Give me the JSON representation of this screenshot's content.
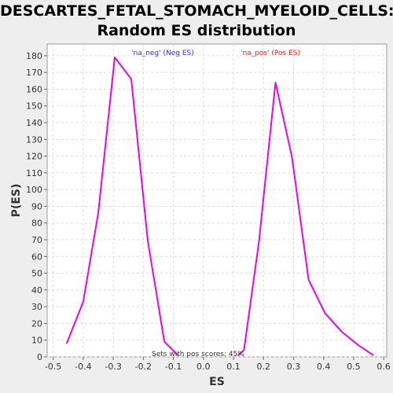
{
  "chart_data": {
    "type": "line",
    "title": "DESCARTES_FETAL_STOMACH_MYELOID_CELLS:",
    "subtitle": "Random ES distribution",
    "xlabel": "ES",
    "ylabel": "P(ES)",
    "xlim": [
      -0.52,
      0.61
    ],
    "ylim": [
      0,
      187
    ],
    "x_ticks": [
      "-0.5",
      "-0.4",
      "-0.3",
      "-0.2",
      "-0.1",
      "0.0",
      "0.1",
      "0.2",
      "0.3",
      "0.4",
      "0.5",
      "0.6"
    ],
    "y_ticks": [
      "0",
      "10",
      "20",
      "30",
      "40",
      "50",
      "60",
      "70",
      "80",
      "90",
      "100",
      "110",
      "120",
      "130",
      "140",
      "150",
      "160",
      "170",
      "180"
    ],
    "grid": true,
    "series": [
      {
        "name": "'na_neg' (Neg ES)",
        "color": "#ee00ee",
        "x": [
          -0.455,
          -0.4,
          -0.35,
          -0.295,
          -0.24,
          -0.185,
          -0.13,
          -0.085
        ],
        "y": [
          8,
          33,
          86,
          179,
          166,
          69,
          9,
          1
        ]
      },
      {
        "name": "'na_pos' (Pos ES)",
        "color": "#ee00ee",
        "x": [
          0.115,
          0.135,
          0.185,
          0.24,
          0.295,
          0.35,
          0.405,
          0.46,
          0.515,
          0.565
        ],
        "y": [
          1,
          4,
          69,
          164,
          119,
          46,
          26,
          15,
          7,
          1
        ]
      }
    ],
    "legend": [
      {
        "label": "'na_neg' (Neg ES)",
        "color": "#3333cc"
      },
      {
        "label": "'na_pos' (Pos ES)",
        "color": "#ee2222"
      }
    ],
    "annotation": "Sets with pos scores: 45%"
  }
}
